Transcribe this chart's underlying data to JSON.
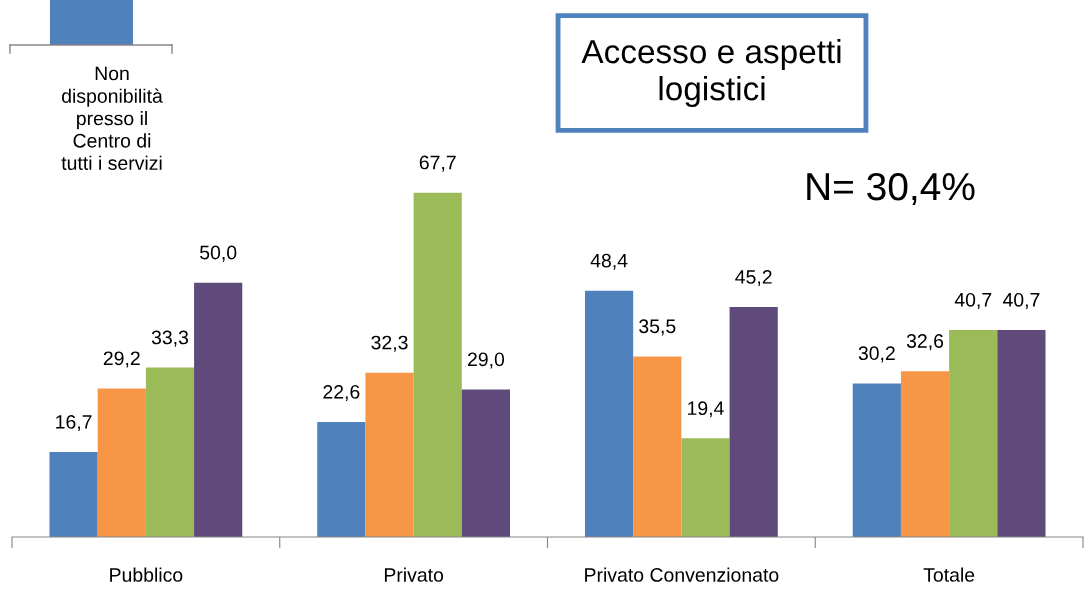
{
  "chart_data": {
    "type": "bar",
    "title": "Accesso e aspetti\nlogistici",
    "categories": [
      "Pubblico",
      "Privato",
      "Privato Convenzionato",
      "Totale"
    ],
    "series": [
      {
        "name": "Non\ndisponibilità\npresso il\nCentro di\ntutti i servizi",
        "color": "#4f81bd",
        "values": [
          16.7,
          22.6,
          48.4,
          30.2
        ],
        "value_labels": [
          "16,7",
          "22,6",
          "48,4",
          "30,2"
        ]
      },
      {
        "color": "#f79646",
        "values": [
          29.2,
          32.3,
          35.5,
          32.6
        ],
        "value_labels": [
          "29,2",
          "32,3",
          "35,5",
          "32,6"
        ]
      },
      {
        "color": "#9bbb59",
        "values": [
          33.3,
          67.7,
          19.4,
          40.7
        ],
        "value_labels": [
          "33,3",
          "67,7",
          "19,4",
          "40,7"
        ]
      },
      {
        "color": "#604a7b",
        "values": [
          50.0,
          29.0,
          45.2,
          40.7
        ],
        "value_labels": [
          "50,0",
          "29,0",
          "45,2",
          "40,7"
        ]
      }
    ],
    "annotations": [
      "N= 30,4%"
    ],
    "legend": "top left",
    "grid": false
  }
}
